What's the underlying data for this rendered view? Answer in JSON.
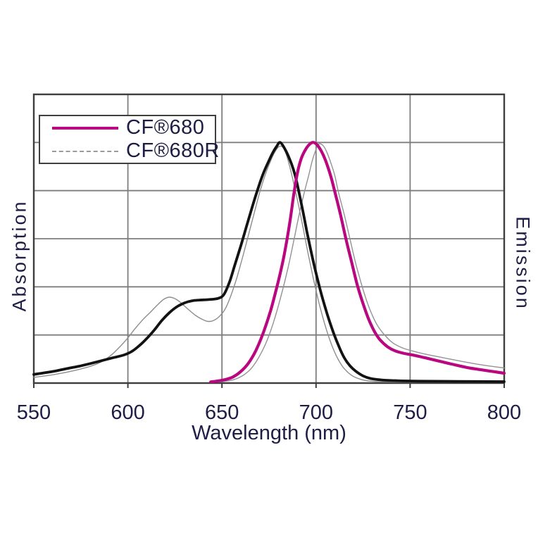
{
  "figure": {
    "legend": {
      "items": [
        {
          "label": "CF®680",
          "line_style": "solid",
          "color": "#b90780",
          "thickness": 4
        },
        {
          "label": "CF®680R",
          "line_style": "dashed",
          "color": "#9b9b9b",
          "thickness": 2
        }
      ]
    }
  },
  "chart_data": {
    "type": "line",
    "title": "",
    "xlabel": "Wavelength (nm)",
    "ylabel_left": "Absorption",
    "ylabel_right": "Emission",
    "x_range": [
      550,
      800
    ],
    "x_ticks": [
      550,
      600,
      650,
      700,
      750,
      800
    ],
    "y_divisions": 6,
    "y_peak_fraction": 0.8333,
    "grid": true,
    "legend_position": "top-left",
    "colors": {
      "grid": "#7e7e7e",
      "border": "#3d3d3d",
      "text": "#1d1d45",
      "tick": "#3d3d3d"
    },
    "series": [
      {
        "id": "cf680r-absorption",
        "name": "CF®680R Absorption",
        "color": "#8d8d8d",
        "width": 1.4,
        "style": "thin",
        "points": [
          [
            550,
            0.024
          ],
          [
            558,
            0.032
          ],
          [
            566,
            0.043
          ],
          [
            572,
            0.053
          ],
          [
            578,
            0.065
          ],
          [
            584,
            0.081
          ],
          [
            588,
            0.098
          ],
          [
            592,
            0.122
          ],
          [
            596,
            0.153
          ],
          [
            600,
            0.188
          ],
          [
            604,
            0.228
          ],
          [
            608,
            0.264
          ],
          [
            612,
            0.295
          ],
          [
            616,
            0.327
          ],
          [
            619,
            0.348
          ],
          [
            622,
            0.357
          ],
          [
            625,
            0.351
          ],
          [
            628,
            0.335
          ],
          [
            632,
            0.307
          ],
          [
            636,
            0.281
          ],
          [
            640,
            0.263
          ],
          [
            643,
            0.256
          ],
          [
            646,
            0.262
          ],
          [
            649,
            0.28
          ],
          [
            652,
            0.312
          ],
          [
            655,
            0.369
          ],
          [
            658,
            0.44
          ],
          [
            661,
            0.524
          ],
          [
            664,
            0.613
          ],
          [
            667,
            0.702
          ],
          [
            670,
            0.791
          ],
          [
            673,
            0.866
          ],
          [
            676,
            0.926
          ],
          [
            678,
            0.959
          ],
          [
            680,
            0.981
          ],
          [
            682,
            0.983
          ],
          [
            684,
            0.955
          ],
          [
            686,
            0.9
          ],
          [
            688,
            0.835
          ],
          [
            690,
            0.765
          ],
          [
            692,
            0.69
          ],
          [
            694,
            0.61
          ],
          [
            696,
            0.53
          ],
          [
            698,
            0.455
          ],
          [
            700,
            0.385
          ],
          [
            702,
            0.32
          ],
          [
            705,
            0.235
          ],
          [
            708,
            0.165
          ],
          [
            711,
            0.11
          ],
          [
            714,
            0.07
          ],
          [
            717,
            0.044
          ],
          [
            720,
            0.027
          ],
          [
            724,
            0.015
          ],
          [
            728,
            0.009
          ],
          [
            734,
            0.006
          ],
          [
            745,
            0.004
          ],
          [
            765,
            0.0035
          ],
          [
            800,
            0.003
          ]
        ]
      },
      {
        "id": "cf680r-emission",
        "name": "CF®680R Emission",
        "color": "#949198",
        "width": 1.4,
        "style": "thin",
        "points": [
          [
            648,
            0.004
          ],
          [
            654,
            0.01
          ],
          [
            658,
            0.019
          ],
          [
            662,
            0.036
          ],
          [
            666,
            0.065
          ],
          [
            670,
            0.113
          ],
          [
            674,
            0.178
          ],
          [
            678,
            0.268
          ],
          [
            682,
            0.38
          ],
          [
            685,
            0.475
          ],
          [
            688,
            0.585
          ],
          [
            691,
            0.7
          ],
          [
            694,
            0.8
          ],
          [
            696,
            0.86
          ],
          [
            698,
            0.925
          ],
          [
            700,
            0.972
          ],
          [
            701,
            0.99
          ],
          [
            702,
            0.995
          ],
          [
            704,
            0.985
          ],
          [
            706,
            0.955
          ],
          [
            708,
            0.912
          ],
          [
            710,
            0.862
          ],
          [
            712,
            0.79
          ],
          [
            715,
            0.7
          ],
          [
            718,
            0.6
          ],
          [
            721,
            0.5
          ],
          [
            724,
            0.415
          ],
          [
            727,
            0.34
          ],
          [
            730,
            0.28
          ],
          [
            733,
            0.235
          ],
          [
            737,
            0.195
          ],
          [
            741,
            0.166
          ],
          [
            746,
            0.146
          ],
          [
            751,
            0.134
          ],
          [
            757,
            0.122
          ],
          [
            764,
            0.111
          ],
          [
            771,
            0.1
          ],
          [
            779,
            0.088
          ],
          [
            787,
            0.077
          ],
          [
            794,
            0.069
          ],
          [
            800,
            0.063
          ]
        ]
      },
      {
        "id": "cf680-absorption",
        "name": "CF®680 Absorption",
        "color": "#121212",
        "width": 3.8,
        "style": "thick",
        "points": [
          [
            550,
            0.036
          ],
          [
            556,
            0.043
          ],
          [
            562,
            0.051
          ],
          [
            568,
            0.061
          ],
          [
            574,
            0.07
          ],
          [
            580,
            0.081
          ],
          [
            586,
            0.093
          ],
          [
            592,
            0.105
          ],
          [
            598,
            0.117
          ],
          [
            602,
            0.131
          ],
          [
            606,
            0.155
          ],
          [
            610,
            0.185
          ],
          [
            614,
            0.22
          ],
          [
            618,
            0.26
          ],
          [
            622,
            0.292
          ],
          [
            626,
            0.317
          ],
          [
            630,
            0.333
          ],
          [
            634,
            0.342
          ],
          [
            638,
            0.345
          ],
          [
            643,
            0.347
          ],
          [
            648,
            0.352
          ],
          [
            651,
            0.368
          ],
          [
            654,
            0.42
          ],
          [
            657,
            0.495
          ],
          [
            660,
            0.57
          ],
          [
            663,
            0.65
          ],
          [
            666,
            0.73
          ],
          [
            669,
            0.805
          ],
          [
            672,
            0.872
          ],
          [
            675,
            0.925
          ],
          [
            677,
            0.957
          ],
          [
            679,
            0.983
          ],
          [
            681,
            1.0
          ],
          [
            684,
            0.965
          ],
          [
            687,
            0.91
          ],
          [
            689,
            0.86
          ],
          [
            691,
            0.79
          ],
          [
            693,
            0.715
          ],
          [
            695,
            0.635
          ],
          [
            697,
            0.56
          ],
          [
            699,
            0.49
          ],
          [
            701,
            0.425
          ],
          [
            703,
            0.365
          ],
          [
            706,
            0.285
          ],
          [
            709,
            0.215
          ],
          [
            712,
            0.155
          ],
          [
            715,
            0.105
          ],
          [
            718,
            0.072
          ],
          [
            721,
            0.05
          ],
          [
            725,
            0.03
          ],
          [
            729,
            0.019
          ],
          [
            735,
            0.013
          ],
          [
            743,
            0.01
          ],
          [
            755,
            0.008
          ],
          [
            775,
            0.007
          ],
          [
            800,
            0.006
          ]
        ]
      },
      {
        "id": "cf680-emission",
        "name": "CF®680 Emission",
        "color": "#b90780",
        "width": 4.2,
        "style": "thick",
        "points": [
          [
            644,
            0.005
          ],
          [
            648,
            0.009
          ],
          [
            652,
            0.015
          ],
          [
            656,
            0.026
          ],
          [
            660,
            0.048
          ],
          [
            664,
            0.082
          ],
          [
            668,
            0.135
          ],
          [
            672,
            0.21
          ],
          [
            676,
            0.305
          ],
          [
            680,
            0.425
          ],
          [
            683,
            0.53
          ],
          [
            686,
            0.665
          ],
          [
            688,
            0.775
          ],
          [
            690,
            0.87
          ],
          [
            692,
            0.93
          ],
          [
            694,
            0.965
          ],
          [
            696,
            0.988
          ],
          [
            698,
            1.0
          ],
          [
            700,
            0.995
          ],
          [
            702,
            0.975
          ],
          [
            704,
            0.945
          ],
          [
            706,
            0.905
          ],
          [
            708,
            0.855
          ],
          [
            710,
            0.795
          ],
          [
            713,
            0.7
          ],
          [
            716,
            0.595
          ],
          [
            719,
            0.5
          ],
          [
            722,
            0.405
          ],
          [
            725,
            0.33
          ],
          [
            728,
            0.265
          ],
          [
            731,
            0.215
          ],
          [
            734,
            0.18
          ],
          [
            738,
            0.151
          ],
          [
            742,
            0.134
          ],
          [
            747,
            0.123
          ],
          [
            752,
            0.116
          ],
          [
            758,
            0.105
          ],
          [
            765,
            0.092
          ],
          [
            772,
            0.079
          ],
          [
            780,
            0.065
          ],
          [
            788,
            0.055
          ],
          [
            794,
            0.048
          ],
          [
            800,
            0.041
          ]
        ]
      }
    ]
  }
}
